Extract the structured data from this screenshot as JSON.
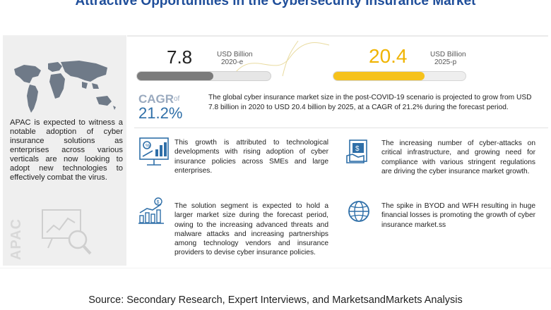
{
  "title": "Attractive Opportunities in the Cybersecurity Insurance Market",
  "left_panel": {
    "text": "APAC is expected to witness a notable adoption of cyber insurance solutions as enterprises across various verticals are now looking to adopt new technologies to effectively combat the virus.",
    "watermark": "APAC"
  },
  "metrics": {
    "value_2020": "7.8",
    "unit_2020": "USD Billion",
    "year_2020": "2020-e",
    "value_2025": "20.4",
    "unit_2025": "USD Billion",
    "year_2025": "2025-p",
    "bar_2020_fill_fraction": 0.57,
    "bar_2025_fill_fraction": 0.69
  },
  "cagr": {
    "label": "CAGR",
    "of": "of",
    "value": "21.2%",
    "summary": "The global cyber insurance market size in the post-COVID-19 scenario is projected to grow from USD 7.8 billion in 2020 to USD 20.4 billion by 2025, at a CAGR of 21.2% during the forecast period."
  },
  "cards": [
    {
      "icon": "growth-chart-icon",
      "text": "This growth is attributed to technological developments with rising adoption of cyber insurance policies across SMEs and large enterprises."
    },
    {
      "icon": "money-document-icon",
      "text": "The increasing number of cyber-attacks on critical infrastructure, and growing need for compliance with various stringent regulations are driving the cyber insurance market growth."
    },
    {
      "icon": "bar-chart-dollar-icon",
      "text": "The solution segment is expected to hold a larger market size during the forecast period, owing to the increasing advanced threats and malware attacks and increasing partnerships among technology vendors and insurance providers to devise cyber insurance policies."
    },
    {
      "icon": "globe-icon",
      "text": "The spike in BYOD and WFH resulting in huge financial losses is promoting the growth of cyber insurance market.ss"
    }
  ],
  "source": "Source: Secondary Research, Expert Interviews, and MarketsandMarkets Analysis",
  "colors": {
    "title": "#1f4e9a",
    "bar_2020": "#7b7b7b",
    "bar_2025": "#f6c21c",
    "value_2025": "#f0b400",
    "cagr_value": "#2f6fa8",
    "icon_blue": "#2f6fa8"
  }
}
